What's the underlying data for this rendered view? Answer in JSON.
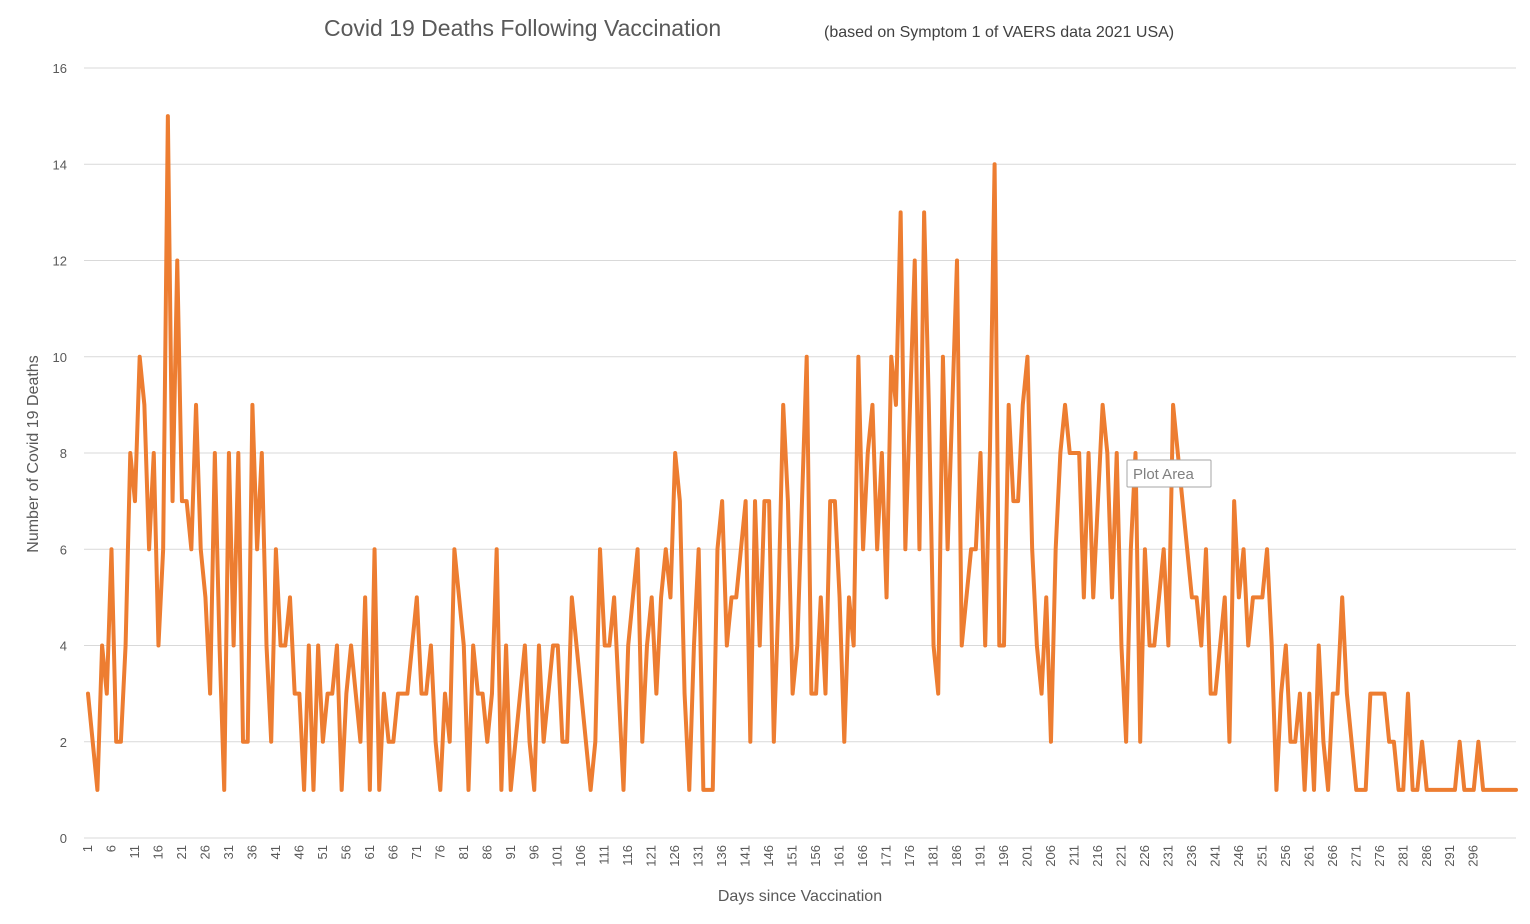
{
  "chart_data": {
    "type": "line",
    "title": "Covid 19 Deaths Following Vaccination",
    "subtitle": "(based on Symptom 1 of VAERS data 2021 USA)",
    "xlabel": "Days since Vaccination",
    "ylabel": "Number of Covid 19 Deaths",
    "ylim": [
      0,
      16
    ],
    "yticks": [
      0,
      2,
      4,
      6,
      8,
      10,
      12,
      14,
      16
    ],
    "xtick_labels": [
      "1",
      "6",
      "11",
      "16",
      "21",
      "26",
      "31",
      "36",
      "41",
      "46",
      "51",
      "56",
      "61",
      "66",
      "71",
      "76",
      "81",
      "86",
      "91",
      "96",
      "101",
      "106",
      "111",
      "116",
      "121",
      "126",
      "131",
      "136",
      "141",
      "146",
      "151",
      "156",
      "161",
      "166",
      "171",
      "176",
      "181",
      "186",
      "191",
      "196",
      "201",
      "206",
      "211",
      "216",
      "221",
      "226",
      "231",
      "236",
      "241",
      "246",
      "251",
      "256",
      "261",
      "266",
      "271",
      "276",
      "281",
      "286",
      "291",
      "296"
    ],
    "grid": "horizontal",
    "legend": "none",
    "series": [
      {
        "color": "#ed7d31",
        "values": [
          3,
          2,
          1,
          4,
          3,
          6,
          2,
          2,
          4,
          8,
          7,
          10,
          9,
          6,
          8,
          4,
          6,
          15,
          7,
          12,
          7,
          7,
          6,
          9,
          6,
          5,
          3,
          8,
          4,
          1,
          8,
          4,
          8,
          2,
          2,
          9,
          6,
          8,
          4,
          2,
          6,
          4,
          4,
          5,
          3,
          3,
          1,
          4,
          1,
          4,
          2,
          3,
          3,
          4,
          1,
          3,
          4,
          3,
          2,
          5,
          1,
          6,
          1,
          3,
          2,
          2,
          3,
          3,
          3,
          4,
          5,
          3,
          3,
          4,
          2,
          1,
          3,
          2,
          6,
          5,
          4,
          1,
          4,
          3,
          3,
          2,
          3,
          6,
          1,
          4,
          1,
          2,
          3,
          4,
          2,
          1,
          4,
          2,
          3,
          4,
          4,
          2,
          2,
          5,
          4,
          3,
          2,
          1,
          2,
          6,
          4,
          4,
          5,
          3,
          1,
          4,
          5,
          6,
          2,
          4,
          5,
          3,
          5,
          6,
          5,
          8,
          7,
          3,
          1,
          4,
          6,
          1,
          1,
          1,
          6,
          7,
          4,
          5,
          5,
          6,
          7,
          2,
          7,
          4,
          7,
          7,
          2,
          5,
          9,
          7,
          3,
          4,
          7,
          10,
          3,
          3,
          5,
          3,
          7,
          7,
          5,
          2,
          5,
          4,
          10,
          6,
          8,
          9,
          6,
          8,
          5,
          10,
          9,
          13,
          6,
          9,
          12,
          6,
          13,
          9,
          4,
          3,
          10,
          6,
          9,
          12,
          4,
          5,
          6,
          6,
          8,
          4,
          8,
          14,
          4,
          4,
          9,
          7,
          7,
          9,
          10,
          6,
          4,
          3,
          5,
          2,
          6,
          8,
          9,
          8,
          8,
          8,
          5,
          8,
          5,
          7,
          9,
          8,
          5,
          8,
          4,
          2,
          6,
          8,
          2,
          6,
          4,
          4,
          5,
          6,
          4,
          9,
          8,
          7,
          6,
          5,
          5,
          4,
          6,
          3,
          3,
          4,
          5,
          2,
          7,
          5,
          6,
          4,
          5,
          5,
          5,
          6,
          4,
          1,
          3,
          4,
          2,
          2,
          3,
          1,
          3,
          1,
          4,
          2,
          1,
          3,
          3,
          5,
          3,
          2,
          1,
          1,
          1,
          3,
          3,
          3,
          3,
          2,
          2,
          1,
          1,
          3,
          1,
          1,
          2,
          1,
          1,
          1,
          1,
          1,
          1,
          1,
          2,
          1,
          1,
          1,
          2,
          1,
          1,
          1,
          1,
          1,
          1,
          1,
          1
        ]
      }
    ]
  },
  "overlay": {
    "tooltip_label": "Plot Area"
  }
}
